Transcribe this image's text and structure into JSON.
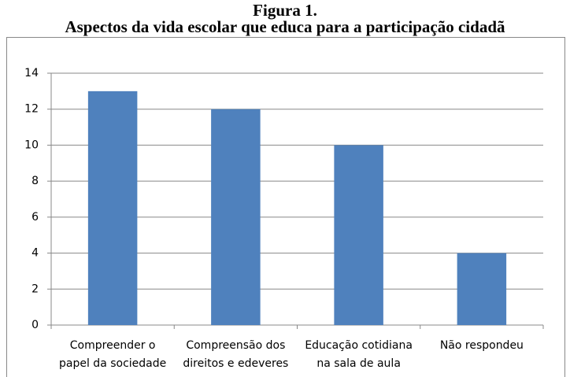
{
  "chart_data": {
    "type": "bar",
    "title": [
      "Figura 1.",
      "Aspectos da vida escolar que educa para a participação cidadã"
    ],
    "categories": [
      [
        "Compreender o",
        "papel da sociedade"
      ],
      [
        "Compreensão dos",
        "direitos e edeveres"
      ],
      [
        "Educação cotidiana",
        "na sala de aula"
      ],
      [
        "Não respondeu"
      ]
    ],
    "values": [
      13,
      12,
      10,
      4
    ],
    "color": "#4f81bd",
    "ylim": [
      0,
      14
    ],
    "yticks": [
      0,
      2,
      4,
      6,
      8,
      10,
      12,
      14
    ],
    "grid": true
  }
}
